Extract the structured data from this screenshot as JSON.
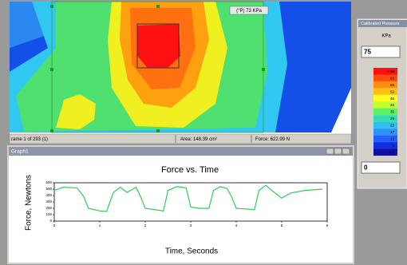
{
  "pressure_map": {
    "annotation": "(°P) 73 KPa",
    "status": {
      "frame": "rame 1 of 293 (1)",
      "area": "Area: 148.39 cm²",
      "force": "Force: 622.99 N"
    }
  },
  "side_panel": {
    "title": "Calibrated Pressure",
    "unit": "KPa",
    "max_input": "75",
    "min_input": "0",
    "legend": {
      "labels": [
        "> 69",
        "63",
        "58",
        "52",
        "46",
        "40",
        "35",
        "29",
        "23",
        "17",
        "12",
        "6",
        "> 0"
      ],
      "colors": [
        "#ff1010",
        "#ff4a10",
        "#ff8c10",
        "#ffc010",
        "#ffff20",
        "#c0ff30",
        "#60f060",
        "#30e0b0",
        "#30c0f0",
        "#3090ff",
        "#2060ff",
        "#1030e0",
        "#1010a0"
      ]
    }
  },
  "graph_window": {
    "title": "Graph1"
  },
  "chart_data": {
    "type": "line",
    "title": "Force vs. Time",
    "x_label": "Time, Seconds",
    "y_label": "Force, Newtons",
    "color": "#33cc55",
    "x": [
      0,
      0.2,
      0.5,
      0.65,
      0.75,
      1.0,
      1.15,
      1.3,
      1.45,
      1.6,
      1.8,
      1.9,
      2.0,
      2.2,
      2.4,
      2.5,
      2.7,
      2.9,
      3.0,
      3.2,
      3.4,
      3.5,
      3.65,
      3.8,
      3.9,
      4.0,
      4.2,
      4.4,
      4.5,
      4.65,
      4.8,
      5.0,
      5.2,
      5.5,
      5.9
    ],
    "values": [
      480,
      530,
      520,
      380,
      200,
      160,
      150,
      450,
      530,
      450,
      530,
      380,
      200,
      180,
      160,
      480,
      540,
      520,
      220,
      200,
      200,
      480,
      540,
      510,
      380,
      200,
      190,
      180,
      480,
      560,
      470,
      360,
      440,
      480,
      500
    ],
    "xlim": [
      0,
      6
    ],
    "ylim": [
      0,
      600
    ],
    "xticks": [
      0,
      1,
      2,
      3,
      4,
      5,
      6
    ],
    "yticks": [
      0,
      100,
      200,
      300,
      400,
      500,
      600
    ]
  }
}
